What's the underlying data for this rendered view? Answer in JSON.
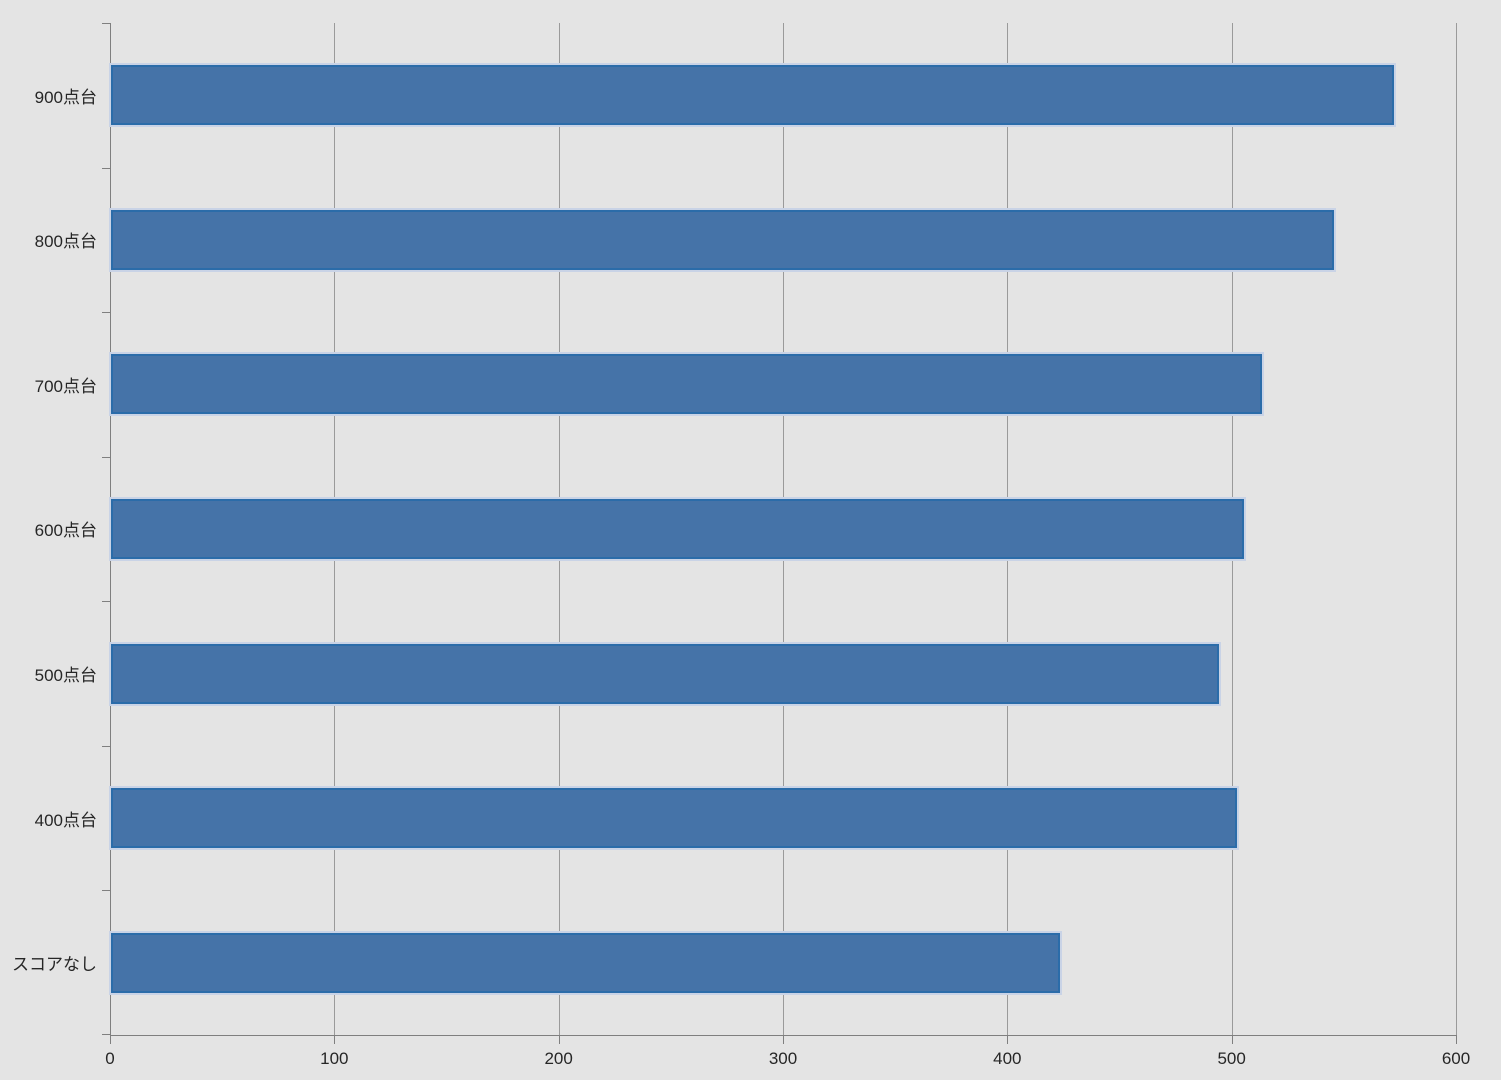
{
  "chart_data": {
    "type": "bar",
    "orientation": "horizontal",
    "title": "",
    "xlabel": "",
    "ylabel": "",
    "categories": [
      "900点台",
      "800点台",
      "700点台",
      "600点台",
      "500点台",
      "400点台",
      "スコアなし"
    ],
    "values": [
      572,
      545,
      513,
      505,
      494,
      502,
      423
    ],
    "xlim": [
      0,
      600
    ],
    "x_ticks": [
      0,
      100,
      200,
      300,
      400,
      500,
      600
    ],
    "x_tick_labels": [
      "0",
      "100",
      "200",
      "300",
      "400",
      "500",
      "600"
    ],
    "grid": "vertical-only",
    "legend": "none",
    "colors": {
      "bar_fill": "#4573A8",
      "bar_border": "#2B6CA9",
      "bar_outline": "#C9D3E6",
      "background": "#E4E4E4",
      "gridline": "#9A9A9A",
      "axis_line": "#7F7F7F",
      "label_text": "#262626"
    }
  }
}
